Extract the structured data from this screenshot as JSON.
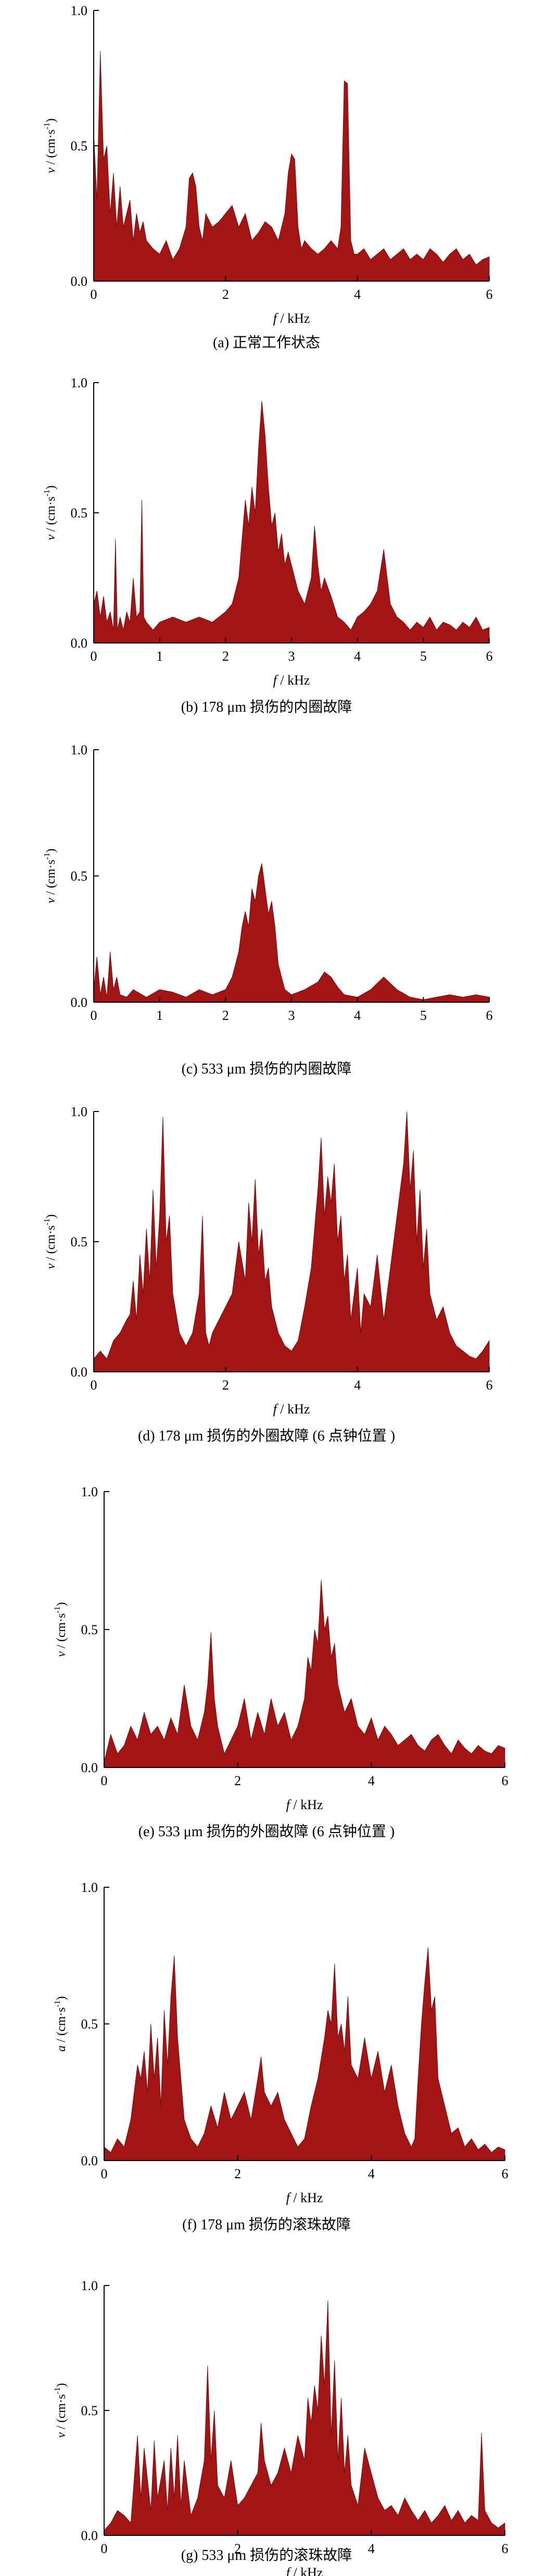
{
  "chart_data": [
    {
      "type": "area",
      "caption": "(a)  正常工作状态",
      "xlabel_var": "f",
      "xlabel_unit": " / kHz",
      "ylabel_var": "v",
      "ylabel_unit": " / (cm·s",
      "xlim": [
        0,
        6
      ],
      "ylim": [
        0,
        1.0
      ],
      "xticks": [
        0,
        2,
        4,
        6
      ],
      "yticks": [
        0.0,
        0.5,
        1.0
      ],
      "color": "#a31515",
      "x": [
        0,
        0.05,
        0.1,
        0.15,
        0.2,
        0.25,
        0.3,
        0.35,
        0.4,
        0.45,
        0.5,
        0.55,
        0.6,
        0.65,
        0.7,
        0.75,
        0.8,
        0.9,
        1.0,
        1.1,
        1.2,
        1.3,
        1.4,
        1.45,
        1.5,
        1.55,
        1.6,
        1.65,
        1.7,
        1.8,
        1.9,
        2.0,
        2.1,
        2.2,
        2.3,
        2.4,
        2.5,
        2.6,
        2.7,
        2.8,
        2.9,
        2.95,
        3.0,
        3.05,
        3.1,
        3.15,
        3.2,
        3.3,
        3.4,
        3.5,
        3.6,
        3.7,
        3.75,
        3.8,
        3.85,
        3.9,
        3.95,
        4.0,
        4.1,
        4.2,
        4.3,
        4.4,
        4.5,
        4.6,
        4.7,
        4.8,
        4.9,
        5.0,
        5.1,
        5.2,
        5.3,
        5.4,
        5.5,
        5.6,
        5.7,
        5.8,
        5.9,
        6.0
      ],
      "values": [
        0.55,
        0.3,
        0.85,
        0.45,
        0.5,
        0.25,
        0.4,
        0.2,
        0.35,
        0.2,
        0.25,
        0.3,
        0.15,
        0.25,
        0.18,
        0.22,
        0.15,
        0.12,
        0.1,
        0.15,
        0.08,
        0.12,
        0.2,
        0.38,
        0.4,
        0.35,
        0.2,
        0.15,
        0.25,
        0.2,
        0.22,
        0.25,
        0.28,
        0.2,
        0.25,
        0.15,
        0.18,
        0.22,
        0.2,
        0.15,
        0.25,
        0.4,
        0.47,
        0.45,
        0.2,
        0.12,
        0.15,
        0.12,
        0.1,
        0.12,
        0.15,
        0.12,
        0.2,
        0.74,
        0.73,
        0.15,
        0.1,
        0.1,
        0.12,
        0.08,
        0.1,
        0.12,
        0.08,
        0.1,
        0.12,
        0.08,
        0.1,
        0.08,
        0.12,
        0.1,
        0.07,
        0.1,
        0.12,
        0.08,
        0.1,
        0.06,
        0.08,
        0.09
      ]
    },
    {
      "type": "area",
      "caption": "(b)  178 μm 损伤的内圈故障",
      "xlabel_var": "f",
      "xlabel_unit": " / kHz",
      "ylabel_var": "v",
      "ylabel_unit": " / (cm·s",
      "xlim": [
        0,
        6
      ],
      "ylim": [
        0,
        1.0
      ],
      "xticks": [
        0,
        1,
        2,
        3,
        4,
        5,
        6
      ],
      "yticks": [
        0.0,
        0.5,
        1.0
      ],
      "color": "#a31515",
      "x": [
        0,
        0.05,
        0.1,
        0.15,
        0.2,
        0.25,
        0.3,
        0.33,
        0.36,
        0.4,
        0.45,
        0.5,
        0.55,
        0.6,
        0.65,
        0.7,
        0.73,
        0.76,
        0.8,
        0.9,
        1.0,
        1.2,
        1.4,
        1.6,
        1.8,
        2.0,
        2.1,
        2.2,
        2.25,
        2.3,
        2.35,
        2.4,
        2.45,
        2.5,
        2.55,
        2.6,
        2.65,
        2.7,
        2.75,
        2.8,
        2.85,
        2.9,
        2.95,
        3.0,
        3.1,
        3.2,
        3.3,
        3.35,
        3.4,
        3.45,
        3.5,
        3.6,
        3.7,
        3.8,
        3.9,
        4.0,
        4.1,
        4.2,
        4.3,
        4.4,
        4.5,
        4.6,
        4.7,
        4.8,
        4.9,
        5.0,
        5.1,
        5.2,
        5.3,
        5.4,
        5.5,
        5.6,
        5.7,
        5.8,
        5.9,
        6.0
      ],
      "values": [
        0.15,
        0.2,
        0.1,
        0.18,
        0.08,
        0.12,
        0.05,
        0.4,
        0.05,
        0.1,
        0.05,
        0.12,
        0.08,
        0.25,
        0.1,
        0.12,
        0.55,
        0.1,
        0.08,
        0.05,
        0.08,
        0.1,
        0.08,
        0.1,
        0.08,
        0.12,
        0.15,
        0.25,
        0.4,
        0.55,
        0.45,
        0.6,
        0.5,
        0.75,
        0.93,
        0.8,
        0.6,
        0.45,
        0.5,
        0.35,
        0.42,
        0.3,
        0.35,
        0.3,
        0.2,
        0.15,
        0.25,
        0.45,
        0.3,
        0.2,
        0.25,
        0.18,
        0.1,
        0.08,
        0.05,
        0.1,
        0.12,
        0.15,
        0.2,
        0.36,
        0.15,
        0.1,
        0.08,
        0.05,
        0.08,
        0.06,
        0.1,
        0.05,
        0.08,
        0.07,
        0.05,
        0.08,
        0.06,
        0.1,
        0.05,
        0.06
      ]
    },
    {
      "type": "area",
      "caption": "(c)  533 μm 损伤的内圈故障",
      "xlabel_var": "",
      "xlabel_unit": "",
      "ylabel_var": "v",
      "ylabel_unit": " / (cm·s",
      "xlim": [
        0,
        6
      ],
      "ylim": [
        0,
        1.0
      ],
      "xticks": [
        0,
        1,
        2,
        3,
        4,
        5,
        6
      ],
      "yticks": [
        0.0,
        0.5,
        1.0
      ],
      "color": "#a31515",
      "x": [
        0,
        0.05,
        0.1,
        0.15,
        0.2,
        0.25,
        0.3,
        0.35,
        0.4,
        0.5,
        0.6,
        0.8,
        1.0,
        1.2,
        1.4,
        1.6,
        1.8,
        2.0,
        2.1,
        2.2,
        2.25,
        2.3,
        2.35,
        2.4,
        2.45,
        2.5,
        2.55,
        2.6,
        2.65,
        2.7,
        2.75,
        2.8,
        2.9,
        3.0,
        3.2,
        3.4,
        3.5,
        3.6,
        3.7,
        3.8,
        4.0,
        4.2,
        4.4,
        4.6,
        4.8,
        5.0,
        5.2,
        5.4,
        5.6,
        5.8,
        6.0
      ],
      "values": [
        0.05,
        0.18,
        0.03,
        0.1,
        0.02,
        0.2,
        0.05,
        0.1,
        0.03,
        0.02,
        0.05,
        0.02,
        0.05,
        0.04,
        0.02,
        0.05,
        0.03,
        0.05,
        0.1,
        0.2,
        0.3,
        0.36,
        0.3,
        0.45,
        0.4,
        0.5,
        0.55,
        0.45,
        0.35,
        0.4,
        0.3,
        0.15,
        0.05,
        0.03,
        0.05,
        0.08,
        0.12,
        0.1,
        0.06,
        0.03,
        0.02,
        0.05,
        0.1,
        0.05,
        0.02,
        0.01,
        0.02,
        0.03,
        0.02,
        0.03,
        0.02
      ]
    },
    {
      "type": "area",
      "caption": "(d)  178 μm 损伤的外圈故障 (6 点钟位置 )",
      "xlabel_var": "f",
      "xlabel_unit": " / kHz",
      "ylabel_var": "v",
      "ylabel_unit": " / (cm·s",
      "xlim": [
        0,
        6
      ],
      "ylim": [
        0,
        1.0
      ],
      "xticks": [
        0,
        2,
        4,
        6
      ],
      "yticks": [
        0.0,
        0.5,
        1.0
      ],
      "color": "#a31515",
      "x": [
        0,
        0.1,
        0.2,
        0.3,
        0.4,
        0.5,
        0.55,
        0.6,
        0.65,
        0.7,
        0.75,
        0.8,
        0.85,
        0.9,
        0.95,
        1.0,
        1.05,
        1.1,
        1.15,
        1.2,
        1.3,
        1.4,
        1.5,
        1.6,
        1.65,
        1.7,
        1.75,
        1.8,
        1.9,
        2.0,
        2.1,
        2.2,
        2.3,
        2.35,
        2.4,
        2.45,
        2.5,
        2.55,
        2.6,
        2.65,
        2.7,
        2.8,
        2.9,
        3.0,
        3.1,
        3.2,
        3.3,
        3.35,
        3.4,
        3.45,
        3.5,
        3.55,
        3.6,
        3.65,
        3.7,
        3.75,
        3.8,
        3.85,
        3.9,
        3.95,
        4.0,
        4.05,
        4.1,
        4.2,
        4.3,
        4.4,
        4.5,
        4.6,
        4.7,
        4.75,
        4.8,
        4.85,
        4.9,
        4.95,
        5.0,
        5.05,
        5.1,
        5.2,
        5.3,
        5.4,
        5.5,
        5.6,
        5.7,
        5.8,
        5.9,
        6.0
      ],
      "values": [
        0.05,
        0.08,
        0.05,
        0.12,
        0.15,
        0.2,
        0.22,
        0.35,
        0.2,
        0.45,
        0.3,
        0.55,
        0.35,
        0.7,
        0.4,
        0.6,
        0.98,
        0.5,
        0.6,
        0.3,
        0.15,
        0.1,
        0.15,
        0.3,
        0.6,
        0.15,
        0.1,
        0.15,
        0.2,
        0.25,
        0.3,
        0.5,
        0.35,
        0.65,
        0.5,
        0.74,
        0.45,
        0.55,
        0.35,
        0.4,
        0.25,
        0.15,
        0.1,
        0.08,
        0.12,
        0.25,
        0.4,
        0.55,
        0.7,
        0.9,
        0.6,
        0.75,
        0.65,
        0.8,
        0.5,
        0.6,
        0.35,
        0.45,
        0.2,
        0.3,
        0.4,
        0.15,
        0.3,
        0.25,
        0.45,
        0.2,
        0.4,
        0.6,
        0.8,
        1.0,
        0.7,
        0.85,
        0.5,
        0.7,
        0.4,
        0.55,
        0.3,
        0.2,
        0.25,
        0.15,
        0.1,
        0.08,
        0.06,
        0.05,
        0.08,
        0.12
      ]
    },
    {
      "type": "area",
      "caption": "(e)  533 μm 损伤的外圈故障 (6 点钟位置 )",
      "xlabel_var": "f",
      "xlabel_unit": " / kHz",
      "ylabel_var": "v",
      "ylabel_unit": " / (cm·s",
      "xlim": [
        0,
        6
      ],
      "ylim": [
        0,
        1.0
      ],
      "xticks": [
        0,
        2,
        4,
        6
      ],
      "yticks": [
        0.0,
        0.5,
        1.0
      ],
      "color": "#a31515",
      "x": [
        0,
        0.1,
        0.2,
        0.3,
        0.4,
        0.5,
        0.6,
        0.7,
        0.8,
        0.9,
        1.0,
        1.1,
        1.2,
        1.3,
        1.4,
        1.5,
        1.55,
        1.6,
        1.65,
        1.7,
        1.8,
        1.9,
        2.0,
        2.1,
        2.2,
        2.3,
        2.4,
        2.5,
        2.6,
        2.7,
        2.8,
        2.9,
        3.0,
        3.05,
        3.1,
        3.15,
        3.2,
        3.25,
        3.3,
        3.35,
        3.4,
        3.45,
        3.5,
        3.6,
        3.7,
        3.8,
        3.9,
        4.0,
        4.1,
        4.2,
        4.3,
        4.4,
        4.5,
        4.6,
        4.7,
        4.8,
        4.9,
        5.0,
        5.1,
        5.2,
        5.3,
        5.4,
        5.5,
        5.6,
        5.7,
        5.8,
        5.9,
        6.0
      ],
      "values": [
        0.02,
        0.12,
        0.05,
        0.08,
        0.15,
        0.1,
        0.2,
        0.12,
        0.15,
        0.1,
        0.18,
        0.12,
        0.3,
        0.15,
        0.1,
        0.2,
        0.3,
        0.49,
        0.25,
        0.15,
        0.05,
        0.1,
        0.15,
        0.25,
        0.1,
        0.2,
        0.12,
        0.25,
        0.15,
        0.2,
        0.1,
        0.15,
        0.25,
        0.4,
        0.35,
        0.5,
        0.45,
        0.68,
        0.5,
        0.55,
        0.4,
        0.45,
        0.3,
        0.2,
        0.25,
        0.15,
        0.12,
        0.18,
        0.1,
        0.15,
        0.12,
        0.08,
        0.1,
        0.12,
        0.08,
        0.06,
        0.1,
        0.12,
        0.08,
        0.05,
        0.1,
        0.07,
        0.05,
        0.08,
        0.06,
        0.05,
        0.08,
        0.07
      ]
    },
    {
      "type": "area",
      "caption": "(f)  178 μm 损伤的滚珠故障",
      "xlabel_var": "f",
      "xlabel_unit": " / kHz",
      "ylabel_var": "a",
      "ylabel_unit": " / (cm·s",
      "xlim": [
        0,
        6
      ],
      "ylim": [
        0,
        1.0
      ],
      "xticks": [
        0,
        2,
        4,
        6
      ],
      "yticks": [
        0.0,
        0.5,
        1.0
      ],
      "color": "#a31515",
      "x": [
        0,
        0.1,
        0.2,
        0.3,
        0.4,
        0.5,
        0.55,
        0.6,
        0.65,
        0.7,
        0.75,
        0.8,
        0.85,
        0.9,
        0.95,
        1.0,
        1.05,
        1.1,
        1.15,
        1.2,
        1.3,
        1.4,
        1.5,
        1.6,
        1.7,
        1.8,
        1.9,
        2.0,
        2.1,
        2.2,
        2.3,
        2.35,
        2.4,
        2.5,
        2.6,
        2.7,
        2.8,
        2.9,
        3.0,
        3.1,
        3.2,
        3.3,
        3.35,
        3.4,
        3.45,
        3.5,
        3.55,
        3.6,
        3.65,
        3.7,
        3.8,
        3.9,
        4.0,
        4.1,
        4.2,
        4.3,
        4.4,
        4.5,
        4.6,
        4.65,
        4.7,
        4.75,
        4.8,
        4.85,
        4.9,
        4.95,
        5.0,
        5.1,
        5.2,
        5.3,
        5.4,
        5.5,
        5.6,
        5.7,
        5.8,
        5.9,
        6.0
      ],
      "values": [
        0.05,
        0.03,
        0.08,
        0.05,
        0.15,
        0.35,
        0.3,
        0.4,
        0.25,
        0.5,
        0.3,
        0.45,
        0.2,
        0.55,
        0.35,
        0.6,
        0.75,
        0.45,
        0.3,
        0.15,
        0.08,
        0.05,
        0.1,
        0.2,
        0.12,
        0.25,
        0.15,
        0.2,
        0.25,
        0.15,
        0.3,
        0.38,
        0.25,
        0.2,
        0.25,
        0.15,
        0.1,
        0.05,
        0.08,
        0.2,
        0.3,
        0.45,
        0.55,
        0.5,
        0.72,
        0.45,
        0.5,
        0.4,
        0.6,
        0.35,
        0.3,
        0.45,
        0.3,
        0.4,
        0.25,
        0.35,
        0.2,
        0.1,
        0.05,
        0.08,
        0.3,
        0.5,
        0.65,
        0.78,
        0.55,
        0.6,
        0.3,
        0.2,
        0.1,
        0.12,
        0.05,
        0.08,
        0.04,
        0.06,
        0.03,
        0.05,
        0.04
      ]
    },
    {
      "type": "area",
      "caption": "(g)  533 μm 损伤的滚珠故障",
      "xlabel_var": "f",
      "xlabel_unit": " / kHz",
      "ylabel_var": "v",
      "ylabel_unit": " / (cm·s",
      "xlim": [
        0,
        6
      ],
      "ylim": [
        0,
        1.0
      ],
      "xticks": [
        0,
        2,
        4,
        6
      ],
      "yticks": [
        0.0,
        0.5,
        1.0
      ],
      "color": "#a31515",
      "x": [
        0,
        0.1,
        0.2,
        0.3,
        0.4,
        0.5,
        0.55,
        0.6,
        0.7,
        0.75,
        0.8,
        0.9,
        0.95,
        1.0,
        1.05,
        1.1,
        1.15,
        1.2,
        1.3,
        1.4,
        1.5,
        1.55,
        1.6,
        1.65,
        1.7,
        1.8,
        1.9,
        2.0,
        2.1,
        2.2,
        2.3,
        2.35,
        2.4,
        2.5,
        2.6,
        2.7,
        2.8,
        2.9,
        3.0,
        3.05,
        3.1,
        3.15,
        3.2,
        3.25,
        3.3,
        3.35,
        3.4,
        3.45,
        3.5,
        3.55,
        3.6,
        3.65,
        3.7,
        3.8,
        3.9,
        4.0,
        4.1,
        4.2,
        4.3,
        4.4,
        4.5,
        4.6,
        4.7,
        4.8,
        4.9,
        5.0,
        5.1,
        5.2,
        5.3,
        5.4,
        5.5,
        5.6,
        5.65,
        5.7,
        5.8,
        5.9,
        6.0
      ],
      "values": [
        0.02,
        0.05,
        0.1,
        0.08,
        0.05,
        0.4,
        0.15,
        0.35,
        0.1,
        0.38,
        0.15,
        0.3,
        0.1,
        0.35,
        0.15,
        0.4,
        0.12,
        0.3,
        0.08,
        0.15,
        0.3,
        0.68,
        0.3,
        0.5,
        0.2,
        0.15,
        0.3,
        0.12,
        0.15,
        0.2,
        0.25,
        0.45,
        0.3,
        0.2,
        0.25,
        0.35,
        0.25,
        0.4,
        0.3,
        0.55,
        0.45,
        0.6,
        0.5,
        0.8,
        0.6,
        0.94,
        0.4,
        0.7,
        0.3,
        0.55,
        0.25,
        0.4,
        0.2,
        0.12,
        0.35,
        0.25,
        0.15,
        0.1,
        0.12,
        0.08,
        0.15,
        0.1,
        0.06,
        0.1,
        0.05,
        0.08,
        0.12,
        0.06,
        0.1,
        0.05,
        0.08,
        0.06,
        0.41,
        0.1,
        0.05,
        0.03,
        0.05
      ]
    }
  ]
}
